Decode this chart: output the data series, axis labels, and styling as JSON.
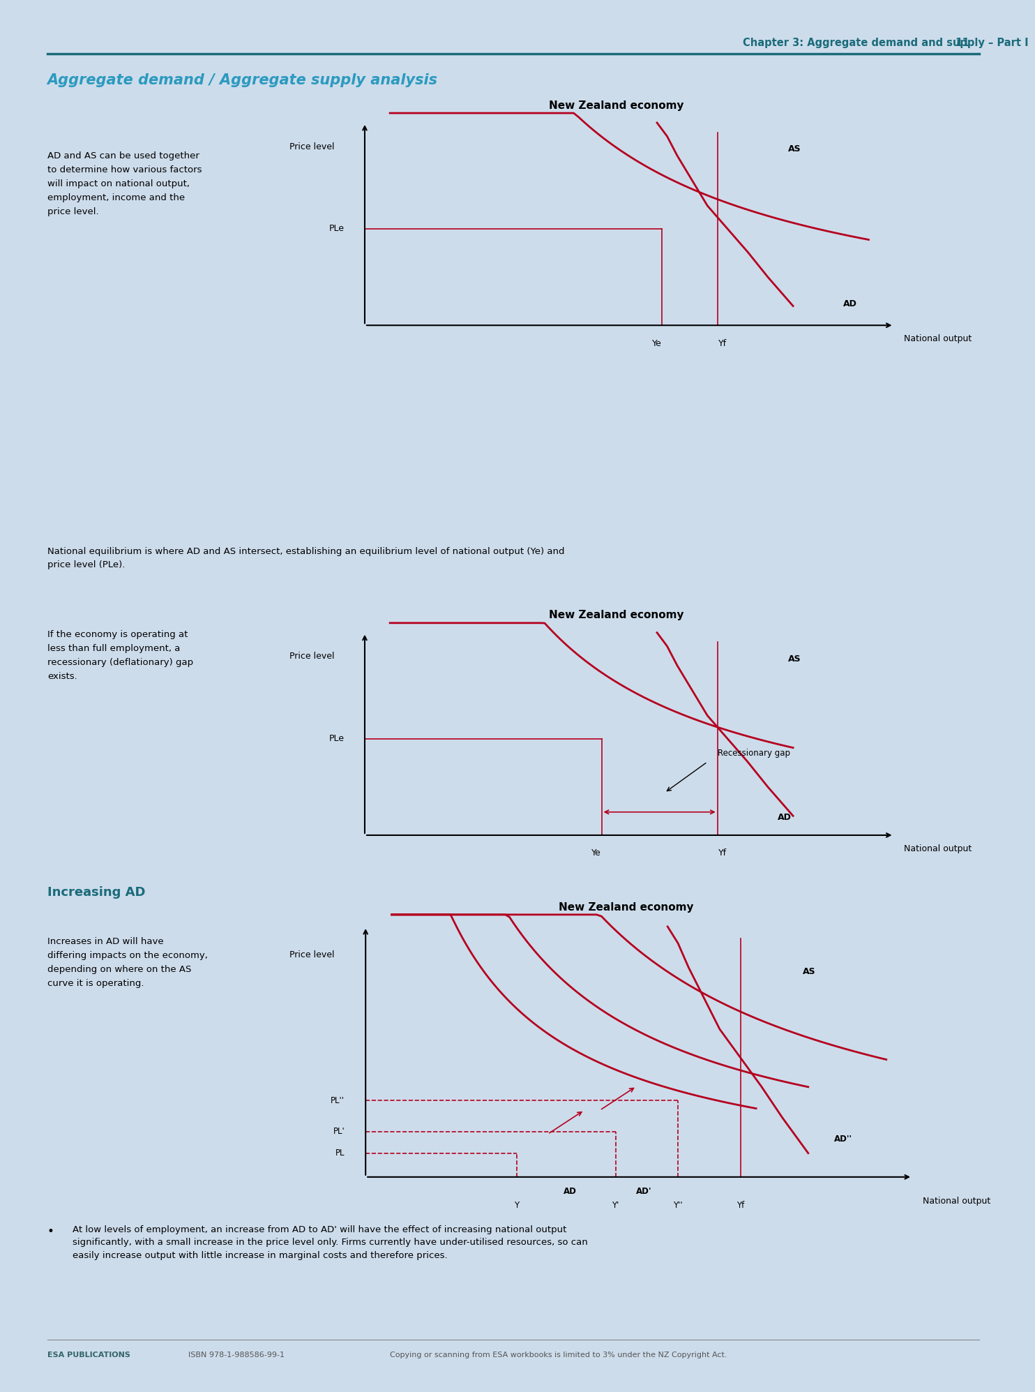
{
  "bg_color": "#cddceb",
  "page_title": "Chapter 3: Aggregate demand and supply – Part I",
  "page_number": "11",
  "section_title": "Aggregate demand / Aggregate supply analysis",
  "section_title_color": "#2b9abf",
  "teal_line_color": "#1a6b7a",
  "header_line_color": "#1a6b7a",
  "curve_color": "#b5001e",
  "axis_color": "#000000",
  "text_color": "#000000",
  "dashed_color": "#b5001e",
  "para1_text": "AD and AS can be used together\nto determine how various factors\nwill impact on national output,\nemployment, income and the\nprice level.",
  "graph1_title": "New Zealand economy",
  "graph1_ylabel": "Price level",
  "graph1_xlabel": "National output",
  "graph1_ple_label": "PLe",
  "graph1_ye_label": "Ye",
  "graph1_yf_label": "Yf",
  "graph1_as_label": "AS",
  "graph1_ad_label": "AD",
  "para2_text": "National equilibrium is where AD and AS intersect, establishing an equilibrium level of national output (Ye) and\nprice level (PLe).",
  "para3_text": "If the economy is operating at\nless than full employment, a\nrecessionary (deflationary) gap\nexists.",
  "graph2_title": "New Zealand economy",
  "graph2_ylabel": "Price level",
  "graph2_xlabel": "National output",
  "graph2_ple_label": "PLe",
  "graph2_ye_label": "Ye",
  "graph2_yf_label": "Yf",
  "graph2_as_label": "AS",
  "graph2_ad_label": "AD",
  "graph2_rec_label": "Recessionary gap",
  "section2_title": "Increasing AD",
  "section2_title_color": "#1a6b7a",
  "para4_text": "Increases in AD will have\ndiffering impacts on the economy,\ndepending on where on the AS\ncurve it is operating.",
  "graph3_title": "New Zealand economy",
  "graph3_ylabel": "Price level",
  "graph3_xlabel": "National output",
  "graph3_pl_label": "PL",
  "graph3_pl1_label": "PL'",
  "graph3_pl2_label": "PL''",
  "graph3_y_label": "Y",
  "graph3_y1_label": "Y'",
  "graph3_y2_label": "Y''",
  "graph3_yf_label": "Yf",
  "graph3_as_label": "AS",
  "graph3_ad_label": "AD",
  "graph3_ad1_label": "AD'",
  "graph3_ad2_label": "AD''",
  "bullet_text": "At low levels of employment, an increase from AD to AD' will have the effect of increasing national output\nsignificantly, with a small increase in the price level only. Firms currently have under-utilised resources, so can\neasily increase output with little increase in marginal costs and therefore prices.",
  "footer_publisher": "ESA PUBLICATIONS",
  "footer_isbn": "ISBN 978-1-988586-99-1",
  "footer_copy": "Copying or scanning from ESA workbooks is limited to 3% under the NZ Copyright Act."
}
